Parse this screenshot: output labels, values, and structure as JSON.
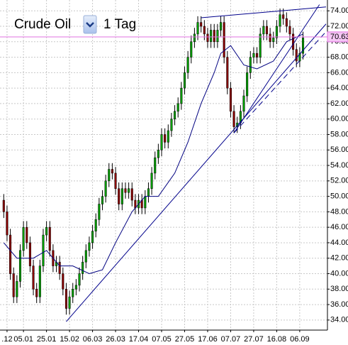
{
  "toolbar": {
    "symbol": "Crude Oil",
    "timeframe": "1 Tag"
  },
  "chart_data": {
    "type": "candlestick",
    "xlim": [
      -1.14,
      98.43
    ],
    "ylim": [
      32.7,
      75.4
    ],
    "xticks": [
      {
        "value": 1,
        "label": ".12"
      },
      {
        "value": 6,
        "label": "05.01"
      },
      {
        "value": 13,
        "label": "25.01"
      },
      {
        "value": 20,
        "label": "15.02"
      },
      {
        "value": 27,
        "label": "06.03"
      },
      {
        "value": 34,
        "label": "26.03"
      },
      {
        "value": 41,
        "label": "17.04"
      },
      {
        "value": 48,
        "label": "07.05"
      },
      {
        "value": 55,
        "label": "27.05"
      },
      {
        "value": 62,
        "label": "17.06"
      },
      {
        "value": 69,
        "label": "07.07"
      },
      {
        "value": 76,
        "label": "27.07"
      },
      {
        "value": 83,
        "label": "16.08"
      },
      {
        "value": 90,
        "label": "06.09"
      }
    ],
    "yticks": [
      {
        "value": 34,
        "label": "34.00"
      },
      {
        "value": 36,
        "label": "36.00"
      },
      {
        "value": 38,
        "label": "38.00"
      },
      {
        "value": 40,
        "label": "40.00"
      },
      {
        "value": 42,
        "label": "42.00"
      },
      {
        "value": 44,
        "label": "44.00"
      },
      {
        "value": 46,
        "label": "46.00"
      },
      {
        "value": 48,
        "label": "48.00"
      },
      {
        "value": 50,
        "label": "50.00"
      },
      {
        "value": 52,
        "label": "52.00"
      },
      {
        "value": 54,
        "label": "54.00"
      },
      {
        "value": 56,
        "label": "56.00"
      },
      {
        "value": 58,
        "label": "58.00"
      },
      {
        "value": 60,
        "label": "60.00"
      },
      {
        "value": 62,
        "label": "62.00"
      },
      {
        "value": 64,
        "label": "64.00"
      },
      {
        "value": 66,
        "label": "66.00"
      },
      {
        "value": 68,
        "label": "68.00"
      },
      {
        "value": 70,
        "label": "70.00"
      },
      {
        "value": 72,
        "label": "72.00"
      },
      {
        "value": 74,
        "label": "74.00"
      }
    ],
    "grid": true,
    "up_color": "#00a000",
    "down_color": "#8b0000",
    "open": [
      49.5,
      48,
      45,
      40,
      37,
      39,
      43,
      46,
      44,
      41,
      38,
      37,
      41,
      45,
      46,
      43,
      41,
      41.5,
      40,
      38,
      35.5,
      37,
      38,
      38.5,
      40,
      41.5,
      43,
      44,
      45.5,
      47,
      49,
      50,
      52,
      53.5,
      53,
      51,
      49,
      51,
      50.5,
      51,
      49.5,
      48.5,
      49.5,
      48.5,
      50,
      51,
      53,
      55,
      56,
      58,
      57,
      58.5,
      60,
      61,
      62,
      64,
      66,
      68,
      70,
      71,
      72.5,
      72,
      71,
      70,
      71.5,
      70,
      71.5,
      72.5,
      68,
      64,
      61,
      59,
      59.5,
      61,
      63,
      66,
      68,
      68.5,
      68,
      71,
      72,
      71,
      70,
      70.5,
      72,
      73.5,
      73,
      72,
      71,
      69,
      67.5,
      68.5
    ],
    "high": [
      50.3,
      48.8,
      45.8,
      40.8,
      39.8,
      43.8,
      46.8,
      46.8,
      44.8,
      41.8,
      38.8,
      41.8,
      45.8,
      46.8,
      46.8,
      43.8,
      42.3,
      42.3,
      40.8,
      38.8,
      37.8,
      38.8,
      39.3,
      40.8,
      42.3,
      43.8,
      44.8,
      46.3,
      47.8,
      49.8,
      50.8,
      52.8,
      54.3,
      54.3,
      53.8,
      51.8,
      51.8,
      51.8,
      51.8,
      51.8,
      50.3,
      50.3,
      50.3,
      50.8,
      51.8,
      53.8,
      55.8,
      56.8,
      58.8,
      58.8,
      59.3,
      60.8,
      61.8,
      62.8,
      64.8,
      66.8,
      68.8,
      70.8,
      71.8,
      73.3,
      73.3,
      72.8,
      71.8,
      72.3,
      72.3,
      72.3,
      73.3,
      73.3,
      68.8,
      64.8,
      61.8,
      60.3,
      61.8,
      63.8,
      66.8,
      68.8,
      69.3,
      69.3,
      71.8,
      72.8,
      72.8,
      71.8,
      71.3,
      72.8,
      74.3,
      74.3,
      73.8,
      72.8,
      71.8,
      69.8,
      69.3,
      71.3
    ],
    "low": [
      47.2,
      44.2,
      39.2,
      36.2,
      36.2,
      38.2,
      42.2,
      43.2,
      40.2,
      37.2,
      36.2,
      36.2,
      40.2,
      44.2,
      42.2,
      40.2,
      40.2,
      39.2,
      37.2,
      34.7,
      34.7,
      36.2,
      37.2,
      37.7,
      39.2,
      40.7,
      42.2,
      43.2,
      44.7,
      46.2,
      48.2,
      49.2,
      51.2,
      52.2,
      50.2,
      48.2,
      48.2,
      49.7,
      49.7,
      48.7,
      47.7,
      47.7,
      47.7,
      47.7,
      49.2,
      50.2,
      52.2,
      54.2,
      55.2,
      56.2,
      56.2,
      57.7,
      59.2,
      60.2,
      61.2,
      63.2,
      65.2,
      67.2,
      69.2,
      70.2,
      71.2,
      70.2,
      69.2,
      69.2,
      69.2,
      69.2,
      70.7,
      67.2,
      63.2,
      60.2,
      58.2,
      58.2,
      58.7,
      60.2,
      62.2,
      65.2,
      67.2,
      67.2,
      67.2,
      70.2,
      70.2,
      69.2,
      69.2,
      69.7,
      71.2,
      72.2,
      71.2,
      70.2,
      68.2,
      66.7,
      66.7,
      67.7
    ],
    "close": [
      48,
      45,
      40,
      37,
      39,
      43,
      46,
      44,
      41,
      38,
      37,
      41,
      45,
      46,
      43,
      41,
      41.5,
      40,
      38,
      35.5,
      37,
      38,
      38.5,
      40,
      41.5,
      43,
      44,
      45.5,
      47,
      49,
      50,
      52,
      53.5,
      53,
      51,
      49,
      51,
      50.5,
      51,
      49.5,
      48.5,
      49.5,
      48.5,
      50,
      51,
      53,
      55,
      56,
      58,
      57,
      58.5,
      60,
      61,
      62,
      64,
      66,
      68,
      70,
      71,
      72.5,
      72,
      71,
      70,
      71.5,
      70,
      71.5,
      72.5,
      68,
      64,
      61,
      59,
      59.5,
      61,
      63,
      66,
      68,
      68.5,
      68,
      71,
      72,
      71,
      70,
      70.5,
      72,
      73.5,
      73,
      72,
      71,
      69,
      67.5,
      68.5,
      70.5
    ],
    "ma": {
      "color": "#000080",
      "x": [
        0,
        4,
        9,
        13,
        17,
        21,
        26,
        30,
        34,
        39,
        43,
        47,
        52,
        56,
        60,
        64,
        66,
        69,
        73,
        77,
        82,
        86,
        91
      ],
      "values": [
        44,
        42,
        42,
        43,
        41,
        41,
        40,
        40.5,
        44,
        48,
        50,
        50,
        53,
        57,
        62,
        66,
        68.5,
        69.5,
        67,
        66.5,
        67.5,
        70,
        71
      ]
    },
    "trendlines": [
      {
        "x": [
          19,
          98
        ],
        "y": [
          33.8,
          72.3
        ],
        "dashed": false
      },
      {
        "x": [
          60,
          98
        ],
        "y": [
          73.1,
          74.5
        ],
        "dashed": false
      },
      {
        "x": [
          70,
          96
        ],
        "y": [
          58.2,
          74.8
        ],
        "dashed": false
      },
      {
        "x": [
          70,
          98
        ],
        "y": [
          58.2,
          71.3
        ],
        "dashed": true
      }
    ],
    "trendline_color": "#00008b",
    "last_price": 70.63,
    "last_color": "#e070e0"
  }
}
